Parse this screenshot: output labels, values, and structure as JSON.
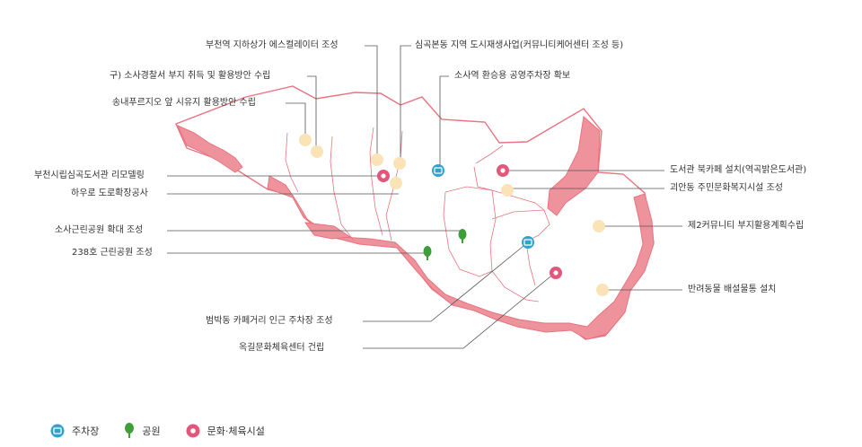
{
  "labels": {
    "escalator": "부천역 지하상가 에스컬레이터 조성",
    "urban_regen": "심곡본동 지역 도시재생사업(커뮤니티케어센터 조성 등)",
    "police": "구) 소사경찰서 부지 취득  및 활용방안 수립",
    "sosa_parking": "소사역 환승용 공영주차장 확보",
    "songnae": "송내푸르지오 앞 시유지 활용방안 수립",
    "library_remodel": "부천시립심곡도서관 리모델링",
    "hawoo_road": "하우로 도로확장공사",
    "book_cafe": "도서관 북카페 설치(역곡밝은도서관)",
    "goean_center": "괴안동 주민문화복지시설 조성",
    "sosa_park": "소사근린공원 확대 조성",
    "community2": "제2커뮤니티 부지활용계획수립",
    "park238": "238호 근린공원 조성",
    "pet_waste": "반려동물 배설물통 설치",
    "beombak_parking": "범박동 카페거리 인근 주차장 조성",
    "okgil_center": "옥길문화체육센터 건립"
  },
  "legend": {
    "parking": "주차장",
    "park": "공원",
    "culture": "문화·체육시설"
  },
  "colors": {
    "boundary": "#e8737f",
    "green_belt": "#ee939b",
    "parking_icon": "#2fa3c9",
    "park_icon": "#3e9e3a",
    "culture_icon": "#e2577a",
    "project_dot": "#fbe3b8",
    "leader_line": "#555555"
  }
}
